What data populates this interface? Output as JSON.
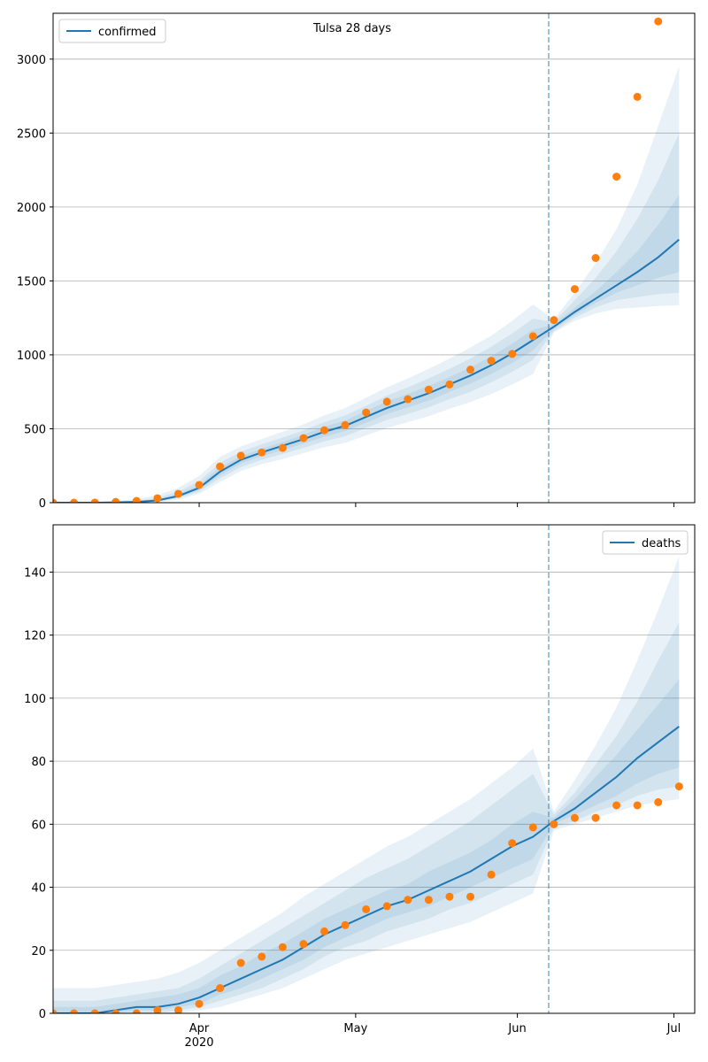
{
  "chart_data": [
    {
      "type": "line",
      "title": "Tulsa 28 days",
      "legend": "upper-left",
      "grid": true,
      "x": [
        "2020-03-04",
        "2020-03-08",
        "2020-03-12",
        "2020-03-16",
        "2020-03-20",
        "2020-03-24",
        "2020-03-28",
        "2020-04-01",
        "2020-04-05",
        "2020-04-09",
        "2020-04-13",
        "2020-04-17",
        "2020-04-21",
        "2020-04-25",
        "2020-04-29",
        "2020-05-03",
        "2020-05-07",
        "2020-05-11",
        "2020-05-15",
        "2020-05-19",
        "2020-05-23",
        "2020-05-27",
        "2020-05-31",
        "2020-06-04",
        "2020-06-08",
        "2020-06-12",
        "2020-06-16",
        "2020-06-20",
        "2020-06-24",
        "2020-06-28",
        "2020-07-02"
      ],
      "xlim": [
        "2020-03-04",
        "2020-07-05"
      ],
      "vline": "2020-06-07",
      "ylim": [
        0,
        3310
      ],
      "yticks": [
        0,
        500,
        1000,
        1500,
        2000,
        2500,
        3000
      ],
      "bands": [
        {
          "color": "#1f77b4",
          "lower": [
            0,
            0,
            0,
            0,
            1,
            5,
            20,
            60,
            140,
            215,
            260,
            295,
            335,
            375,
            405,
            455,
            505,
            545,
            585,
            635,
            680,
            735,
            800,
            870,
            1150,
            1230,
            1280,
            1310,
            1320,
            1330,
            1335
          ],
          "upper": [
            0,
            2,
            5,
            12,
            25,
            50,
            100,
            180,
            310,
            380,
            430,
            480,
            530,
            590,
            640,
            710,
            780,
            840,
            905,
            975,
            1050,
            1130,
            1230,
            1340,
            1240,
            1420,
            1620,
            1850,
            2150,
            2550,
            2950
          ]
        },
        {
          "color": "#1f77b4",
          "lower": [
            0,
            0,
            0,
            1,
            2,
            9,
            30,
            75,
            165,
            240,
            290,
            330,
            370,
            415,
            450,
            505,
            560,
            600,
            645,
            700,
            750,
            815,
            885,
            965,
            1160,
            1250,
            1320,
            1370,
            1390,
            1410,
            1420
          ],
          "upper": [
            0,
            1,
            3,
            7,
            14,
            32,
            75,
            145,
            270,
            345,
            395,
            440,
            490,
            545,
            590,
            655,
            725,
            780,
            840,
            905,
            975,
            1055,
            1145,
            1245,
            1220,
            1370,
            1520,
            1700,
            1920,
            2180,
            2500
          ]
        },
        {
          "color": "#1f77b4",
          "lower": [
            0,
            0,
            0,
            1,
            3,
            12,
            38,
            88,
            185,
            265,
            315,
            355,
            400,
            445,
            485,
            540,
            600,
            645,
            690,
            750,
            805,
            870,
            945,
            1030,
            1175,
            1270,
            1350,
            1420,
            1470,
            1520,
            1560
          ],
          "upper": [
            0,
            0,
            1,
            4,
            9,
            22,
            58,
            120,
            240,
            315,
            365,
            410,
            460,
            515,
            555,
            620,
            685,
            735,
            790,
            850,
            915,
            990,
            1075,
            1170,
            1205,
            1320,
            1430,
            1560,
            1700,
            1880,
            2080
          ]
        }
      ],
      "series": [
        {
          "name": "confirmed",
          "color": "#1f77b4",
          "values": [
            0,
            0,
            0,
            2,
            5,
            15,
            45,
            100,
            210,
            290,
            340,
            385,
            430,
            480,
            520,
            580,
            640,
            690,
            740,
            800,
            860,
            930,
            1010,
            1100,
            1190,
            1290,
            1380,
            1470,
            1560,
            1660,
            1780
          ]
        },
        {
          "color": "#ff7f0e",
          "marker": "o",
          "values": [
            0,
            0,
            1,
            5,
            12,
            30,
            60,
            120,
            245,
            318,
            340,
            370,
            437,
            490,
            525,
            610,
            683,
            700,
            765,
            800,
            900,
            960,
            1006,
            1126,
            1235,
            1445,
            1655,
            2205,
            2745,
            3255,
            null
          ]
        }
      ]
    },
    {
      "type": "line",
      "legend": "upper-right",
      "grid": true,
      "x": [
        "2020-03-04",
        "2020-03-08",
        "2020-03-12",
        "2020-03-16",
        "2020-03-20",
        "2020-03-24",
        "2020-03-28",
        "2020-04-01",
        "2020-04-05",
        "2020-04-09",
        "2020-04-13",
        "2020-04-17",
        "2020-04-21",
        "2020-04-25",
        "2020-04-29",
        "2020-05-03",
        "2020-05-07",
        "2020-05-11",
        "2020-05-15",
        "2020-05-19",
        "2020-05-23",
        "2020-05-27",
        "2020-05-31",
        "2020-06-04",
        "2020-06-08",
        "2020-06-12",
        "2020-06-16",
        "2020-06-20",
        "2020-06-24",
        "2020-06-28",
        "2020-07-02"
      ],
      "xlim": [
        "2020-03-04",
        "2020-07-05"
      ],
      "vline": "2020-06-07",
      "xticks": [
        {
          "value": "2020-04-01",
          "label": "Apr"
        },
        {
          "value": "2020-05-01",
          "label": "May"
        },
        {
          "value": "2020-06-01",
          "label": "Jun"
        },
        {
          "value": "2020-07-01",
          "label": "Jul"
        }
      ],
      "x_year_label": "2020",
      "ylim": [
        0,
        155
      ],
      "yticks": [
        0,
        20,
        40,
        60,
        80,
        100,
        120,
        140
      ],
      "bands": [
        {
          "color": "#1f77b4",
          "lower": [
            0,
            0,
            0,
            0,
            0,
            0,
            0,
            1,
            2,
            4,
            6,
            8,
            11,
            14,
            17,
            19,
            21,
            23,
            25,
            27,
            29,
            32,
            35,
            38,
            58,
            60,
            62,
            64,
            66,
            67,
            68
          ],
          "upper": [
            8,
            8,
            8,
            9,
            10,
            11,
            13,
            16,
            20,
            24,
            28,
            32,
            37,
            41,
            45,
            49,
            53,
            56,
            60,
            64,
            68,
            73,
            78,
            84,
            64,
            74,
            85,
            97,
            112,
            128,
            145
          ]
        },
        {
          "color": "#1f77b4",
          "lower": [
            0,
            0,
            0,
            0,
            0,
            0,
            1,
            2,
            4,
            6,
            8,
            11,
            14,
            18,
            21,
            23,
            26,
            28,
            30,
            33,
            35,
            38,
            41,
            44,
            59,
            61,
            64,
            66,
            69,
            71,
            72
          ],
          "upper": [
            4,
            4,
            4,
            5,
            6,
            7,
            8,
            11,
            15,
            19,
            23,
            27,
            31,
            35,
            39,
            43,
            46,
            49,
            53,
            57,
            61,
            66,
            71,
            76,
            63,
            70,
            79,
            88,
            99,
            112,
            124
          ]
        },
        {
          "color": "#1f77b4",
          "lower": [
            0,
            0,
            0,
            0,
            1,
            1,
            2,
            3,
            6,
            8,
            11,
            14,
            17,
            21,
            24,
            27,
            30,
            32,
            34,
            37,
            40,
            43,
            46,
            49,
            60,
            63,
            66,
            69,
            73,
            76,
            78
          ],
          "upper": [
            2,
            2,
            2,
            3,
            4,
            5,
            6,
            8,
            12,
            15,
            19,
            22,
            26,
            30,
            33,
            36,
            39,
            41,
            45,
            48,
            51,
            55,
            60,
            64,
            62,
            68,
            75,
            82,
            90,
            98,
            106
          ]
        }
      ],
      "series": [
        {
          "name": "deaths",
          "color": "#1f77b4",
          "values": [
            0,
            0,
            0,
            1,
            2,
            2,
            3,
            5,
            8,
            11,
            14,
            17,
            21,
            25,
            28,
            31,
            34,
            36,
            39,
            42,
            45,
            49,
            53,
            56,
            61,
            65,
            70,
            75,
            81,
            86,
            91
          ]
        },
        {
          "color": "#ff7f0e",
          "marker": "o",
          "values": [
            0,
            0,
            0,
            0,
            0,
            1,
            1,
            3,
            8,
            16,
            18,
            21,
            22,
            26,
            28,
            33,
            34,
            36,
            36,
            37,
            37,
            44,
            54,
            59,
            60,
            62,
            62,
            66,
            66,
            67,
            72
          ]
        }
      ]
    }
  ]
}
